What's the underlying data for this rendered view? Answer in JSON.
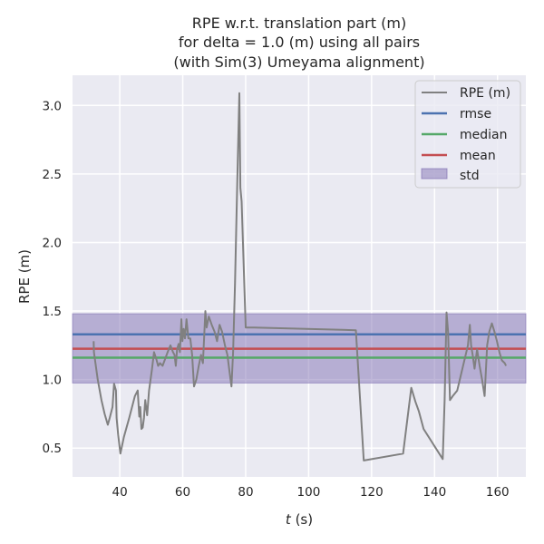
{
  "chart_data": {
    "type": "line",
    "title_lines": [
      "RPE w.r.t. translation part (m)",
      "for delta = 1.0 (m) using all pairs",
      "(with Sim(3) Umeyama alignment)"
    ],
    "xlabel_italic": "t",
    "xlabel_rest": " (s)",
    "ylabel": "RPE (m)",
    "xlim": [
      25,
      169
    ],
    "ylim": [
      0.29,
      3.22
    ],
    "xticks": [
      40,
      60,
      80,
      100,
      120,
      140,
      160
    ],
    "yticks": [
      0.5,
      1.0,
      1.5,
      2.0,
      2.5,
      3.0
    ],
    "xtick_labels": [
      "40",
      "60",
      "80",
      "100",
      "120",
      "140",
      "160"
    ],
    "ytick_labels": [
      "0.5",
      "1.0",
      "1.5",
      "2.0",
      "2.5",
      "3.0"
    ],
    "grid": true,
    "legend_placement": "top-right",
    "stats": {
      "rmse": 1.33,
      "median": 1.16,
      "mean": 1.225,
      "std_band": [
        0.975,
        1.48
      ]
    },
    "series": [
      {
        "name": "RPE (m)",
        "color": "#808080",
        "x": [
          31.7,
          31.8,
          33.0,
          34.2,
          35.2,
          36.2,
          36.8,
          37.7,
          38.2,
          38.8,
          39.0,
          39.5,
          40.2,
          41.3,
          43.0,
          44.8,
          45.7,
          46.2,
          46.5,
          46.9,
          47.3,
          47.7,
          48.1,
          48.7,
          49.3,
          50.2,
          50.9,
          51.6,
          52.2,
          52.8,
          53.6,
          54.4,
          55.2,
          56.1,
          56.9,
          57.4,
          57.8,
          58.2,
          58.7,
          59.1,
          59.6,
          59.9,
          60.3,
          60.7,
          61.2,
          61.8,
          62.4,
          63.0,
          63.6,
          64.3,
          65.1,
          65.8,
          66.4,
          66.8,
          67.2,
          67.6,
          68.3,
          69.2,
          70.1,
          70.9,
          71.7,
          72.5,
          73.4,
          74.2,
          74.9,
          75.5,
          76.0,
          76.6,
          77.4,
          78.0,
          78.3,
          78.7,
          79.2,
          80.0,
          81.0,
          82.6,
          115.0,
          117.5,
          130.0,
          132.6,
          133.9,
          135.0,
          136.5,
          142.6,
          143.2,
          143.8,
          144.3,
          144.9,
          145.8,
          147.2,
          150.6,
          151.2,
          151.6,
          152.1,
          152.7,
          153.5,
          154.3,
          155.1,
          155.9,
          156.7,
          157.4,
          158.2,
          159.0,
          159.8,
          160.6,
          161.4,
          162.3,
          162.7
        ],
        "y": [
          1.28,
          1.2,
          1.0,
          0.85,
          0.75,
          0.67,
          0.72,
          0.8,
          0.97,
          0.92,
          0.72,
          0.6,
          0.46,
          0.58,
          0.72,
          0.88,
          0.92,
          0.73,
          0.8,
          0.64,
          0.65,
          0.72,
          0.85,
          0.74,
          0.92,
          1.07,
          1.2,
          1.15,
          1.1,
          1.12,
          1.1,
          1.15,
          1.2,
          1.25,
          1.2,
          1.18,
          1.1,
          1.22,
          1.26,
          1.2,
          1.44,
          1.28,
          1.37,
          1.3,
          1.44,
          1.3,
          1.3,
          1.18,
          0.95,
          1.0,
          1.1,
          1.18,
          1.12,
          1.3,
          1.5,
          1.38,
          1.46,
          1.4,
          1.35,
          1.28,
          1.4,
          1.35,
          1.25,
          1.18,
          1.05,
          0.95,
          1.2,
          1.7,
          2.5,
          3.09,
          2.4,
          2.3,
          1.95,
          1.38,
          1.38,
          1.38,
          1.36,
          0.41,
          0.46,
          0.94,
          0.84,
          0.77,
          0.64,
          0.42,
          0.85,
          1.49,
          1.35,
          0.85,
          0.88,
          0.92,
          1.25,
          1.4,
          1.25,
          1.18,
          1.08,
          1.22,
          1.1,
          1.0,
          0.88,
          1.25,
          1.35,
          1.41,
          1.35,
          1.28,
          1.2,
          1.14,
          1.12,
          1.1
        ]
      }
    ],
    "legend": [
      {
        "label": "RPE (m)",
        "kind": "line",
        "color": "#808080"
      },
      {
        "label": "rmse",
        "kind": "line",
        "color": "#4c72b0"
      },
      {
        "label": "median",
        "kind": "line",
        "color": "#55a868"
      },
      {
        "label": "mean",
        "kind": "line",
        "color": "#c44e52"
      },
      {
        "label": "std",
        "kind": "patch",
        "color": "#8172b3"
      }
    ],
    "colors": {
      "plot_background": "#eaeaf2",
      "grid": "#ffffff",
      "std_fill": "#8172b3"
    }
  }
}
